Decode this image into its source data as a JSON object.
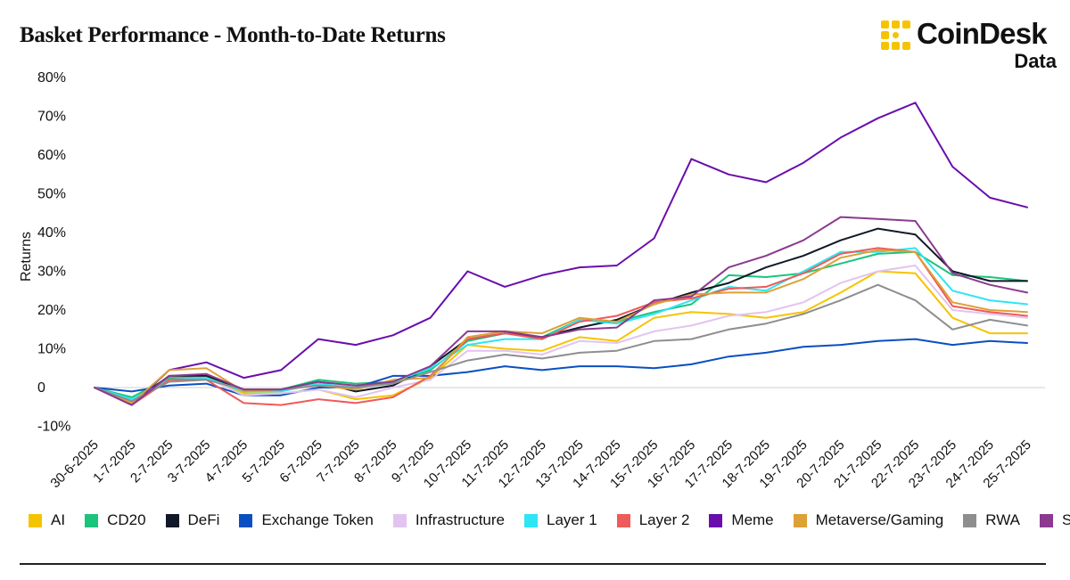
{
  "header": {
    "title": "Basket Performance - Month-to-Date Returns",
    "brand_name": "CoinDesk",
    "brand_sub": "Data",
    "brand_color": "#F5C400"
  },
  "chart_data": {
    "type": "line",
    "title": "Basket Performance - Month-to-Date Returns",
    "xlabel": "",
    "ylabel": "Returns",
    "ylim": [
      -10,
      80
    ],
    "yticks": [
      -10,
      0,
      10,
      20,
      30,
      40,
      50,
      60,
      70,
      80
    ],
    "ytick_labels": [
      "-10%",
      "0",
      "10%",
      "20%",
      "30%",
      "40%",
      "50%",
      "60%",
      "70%",
      "80%"
    ],
    "grid": false,
    "legend_position": "bottom",
    "categories": [
      "30-6-2025",
      "1-7-2025",
      "2-7-2025",
      "3-7-2025",
      "4-7-2025",
      "5-7-2025",
      "6-7-2025",
      "7-7-2025",
      "8-7-2025",
      "9-7-2025",
      "10-7-2025",
      "11-7-2025",
      "12-7-2025",
      "13-7-2025",
      "14-7-2025",
      "15-7-2025",
      "16-7-2025",
      "17-7-2025",
      "18-7-2025",
      "19-7-2025",
      "20-7-2025",
      "21-7-2025",
      "22-7-2025",
      "23-7-2025",
      "24-7-2025",
      "25-7-2025"
    ],
    "series": [
      {
        "name": "AI",
        "color": "#F5C400",
        "values": [
          0,
          -3.5,
          2.0,
          2.5,
          -1.5,
          -1.5,
          -0.5,
          -3.0,
          -2.0,
          2.5,
          11.0,
          10.0,
          9.5,
          13.0,
          12.0,
          18.0,
          19.5,
          19.0,
          18.0,
          19.5,
          24.5,
          30.0,
          29.5,
          18.0,
          14.0,
          14.0
        ]
      },
      {
        "name": "CD20",
        "color": "#1BC47D",
        "values": [
          0,
          -2.5,
          2.5,
          2.5,
          -0.5,
          -0.5,
          2.0,
          1.0,
          1.5,
          4.5,
          12.0,
          14.0,
          13.0,
          17.5,
          17.0,
          19.5,
          21.5,
          29.0,
          28.5,
          29.5,
          32.0,
          34.5,
          35.0,
          29.0,
          28.5,
          27.5
        ]
      },
      {
        "name": "DeFi",
        "color": "#111827",
        "values": [
          0,
          -4.0,
          3.0,
          3.0,
          -0.5,
          -0.5,
          1.5,
          -1.0,
          0.5,
          5.5,
          12.5,
          14.0,
          13.0,
          15.5,
          17.5,
          21.5,
          24.5,
          27.0,
          31.0,
          34.0,
          38.0,
          41.0,
          39.5,
          30.0,
          27.5,
          27.5
        ]
      },
      {
        "name": "Exchange Token",
        "color": "#0A4FC2",
        "values": [
          0,
          -1.0,
          0.5,
          1.0,
          -2.0,
          -2.0,
          0.0,
          0.0,
          3.0,
          3.0,
          4.0,
          5.5,
          4.5,
          5.5,
          5.5,
          5.0,
          6.0,
          8.0,
          9.0,
          10.5,
          11.0,
          12.0,
          12.5,
          11.0,
          12.0,
          11.5
        ]
      },
      {
        "name": "Infrastructure",
        "color": "#E2C4F0",
        "values": [
          0,
          -3.5,
          2.0,
          2.5,
          -2.0,
          -1.5,
          -0.5,
          -2.5,
          0.0,
          2.0,
          9.5,
          9.5,
          8.5,
          12.0,
          11.5,
          14.5,
          16.0,
          18.5,
          19.5,
          22.0,
          27.0,
          30.0,
          31.5,
          20.0,
          19.0,
          18.0
        ]
      },
      {
        "name": "Layer 1",
        "color": "#2EE5F5",
        "values": [
          0,
          -3.0,
          2.0,
          2.5,
          -1.0,
          -1.0,
          1.0,
          0.0,
          1.5,
          5.0,
          11.0,
          12.5,
          12.5,
          17.5,
          16.5,
          19.0,
          22.5,
          26.0,
          25.0,
          30.0,
          35.0,
          35.0,
          36.0,
          25.0,
          22.5,
          21.5
        ]
      },
      {
        "name": "Layer 2",
        "color": "#EF5A5A",
        "values": [
          0,
          -4.5,
          2.0,
          2.0,
          -4.0,
          -4.5,
          -3.0,
          -4.0,
          -2.5,
          3.0,
          12.5,
          14.0,
          12.5,
          17.0,
          18.5,
          22.0,
          23.0,
          25.5,
          26.0,
          29.5,
          34.5,
          36.0,
          35.0,
          21.0,
          19.5,
          18.5
        ]
      },
      {
        "name": "Meme",
        "color": "#6A0DAD",
        "values": [
          0,
          -4.5,
          4.5,
          6.5,
          2.5,
          4.5,
          12.5,
          11.0,
          13.5,
          18.0,
          30.0,
          26.0,
          29.0,
          31.0,
          31.5,
          38.5,
          59.0,
          55.0,
          53.0,
          58.0,
          64.5,
          69.5,
          73.5,
          57.0,
          49.0,
          46.5
        ]
      },
      {
        "name": "Metaverse/Gaming",
        "color": "#DDA136",
        "values": [
          0,
          -4.0,
          4.5,
          5.0,
          -1.0,
          -0.5,
          0.5,
          -0.5,
          2.0,
          2.5,
          13.0,
          14.5,
          14.0,
          18.0,
          17.0,
          21.5,
          24.0,
          24.5,
          24.5,
          28.0,
          33.5,
          35.5,
          35.0,
          22.0,
          20.0,
          19.5
        ]
      },
      {
        "name": "RWA",
        "color": "#8E8E8E",
        "values": [
          0,
          -3.5,
          1.5,
          2.0,
          -0.5,
          -0.5,
          0.5,
          0.0,
          1.0,
          4.0,
          7.0,
          8.5,
          7.5,
          9.0,
          9.5,
          12.0,
          12.5,
          15.0,
          16.5,
          19.0,
          22.5,
          26.5,
          22.5,
          15.0,
          17.5,
          16.0
        ]
      },
      {
        "name": "Staking",
        "color": "#8B3A8F",
        "values": [
          0,
          -4.5,
          3.0,
          3.5,
          -0.5,
          -0.5,
          1.5,
          0.5,
          1.5,
          5.5,
          14.5,
          14.5,
          13.0,
          15.0,
          15.5,
          22.5,
          23.5,
          31.0,
          34.0,
          38.0,
          44.0,
          43.5,
          43.0,
          29.5,
          26.5,
          24.5
        ]
      }
    ]
  }
}
